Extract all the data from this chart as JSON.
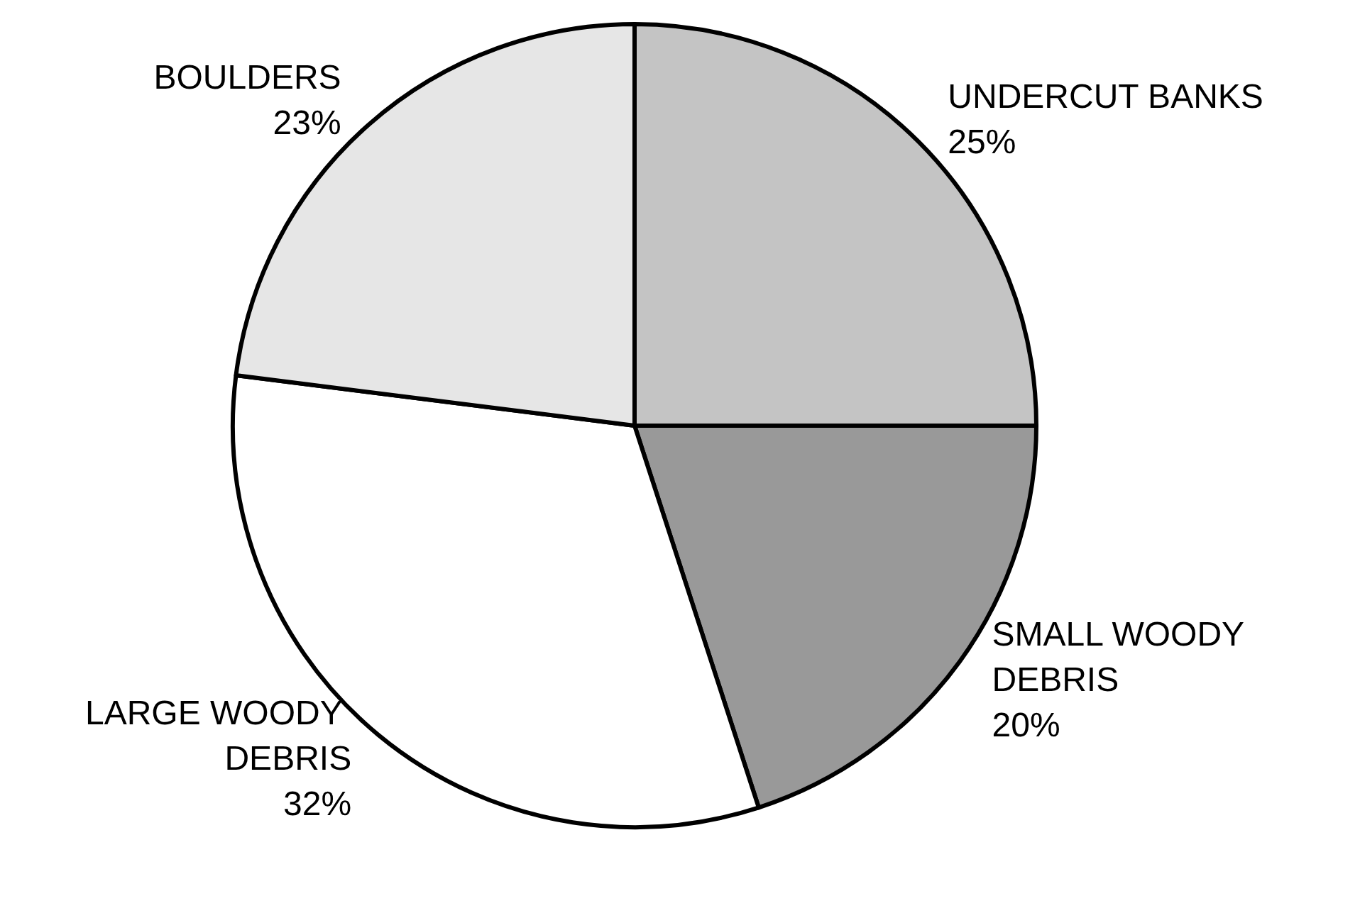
{
  "chart_data": {
    "type": "pie",
    "categories": [
      "UNDERCUT BANKS",
      "SMALL WOODY DEBRIS",
      "LARGE WOODY DEBRIS",
      "BOULDERS"
    ],
    "values": [
      25,
      20,
      32,
      23
    ],
    "colors": [
      "#c4c4c4",
      "#999999",
      "#ffffff",
      "#e6e6e6"
    ],
    "legend": false,
    "value_labels": [
      "25%",
      "20%",
      "32%",
      "23%"
    ]
  }
}
